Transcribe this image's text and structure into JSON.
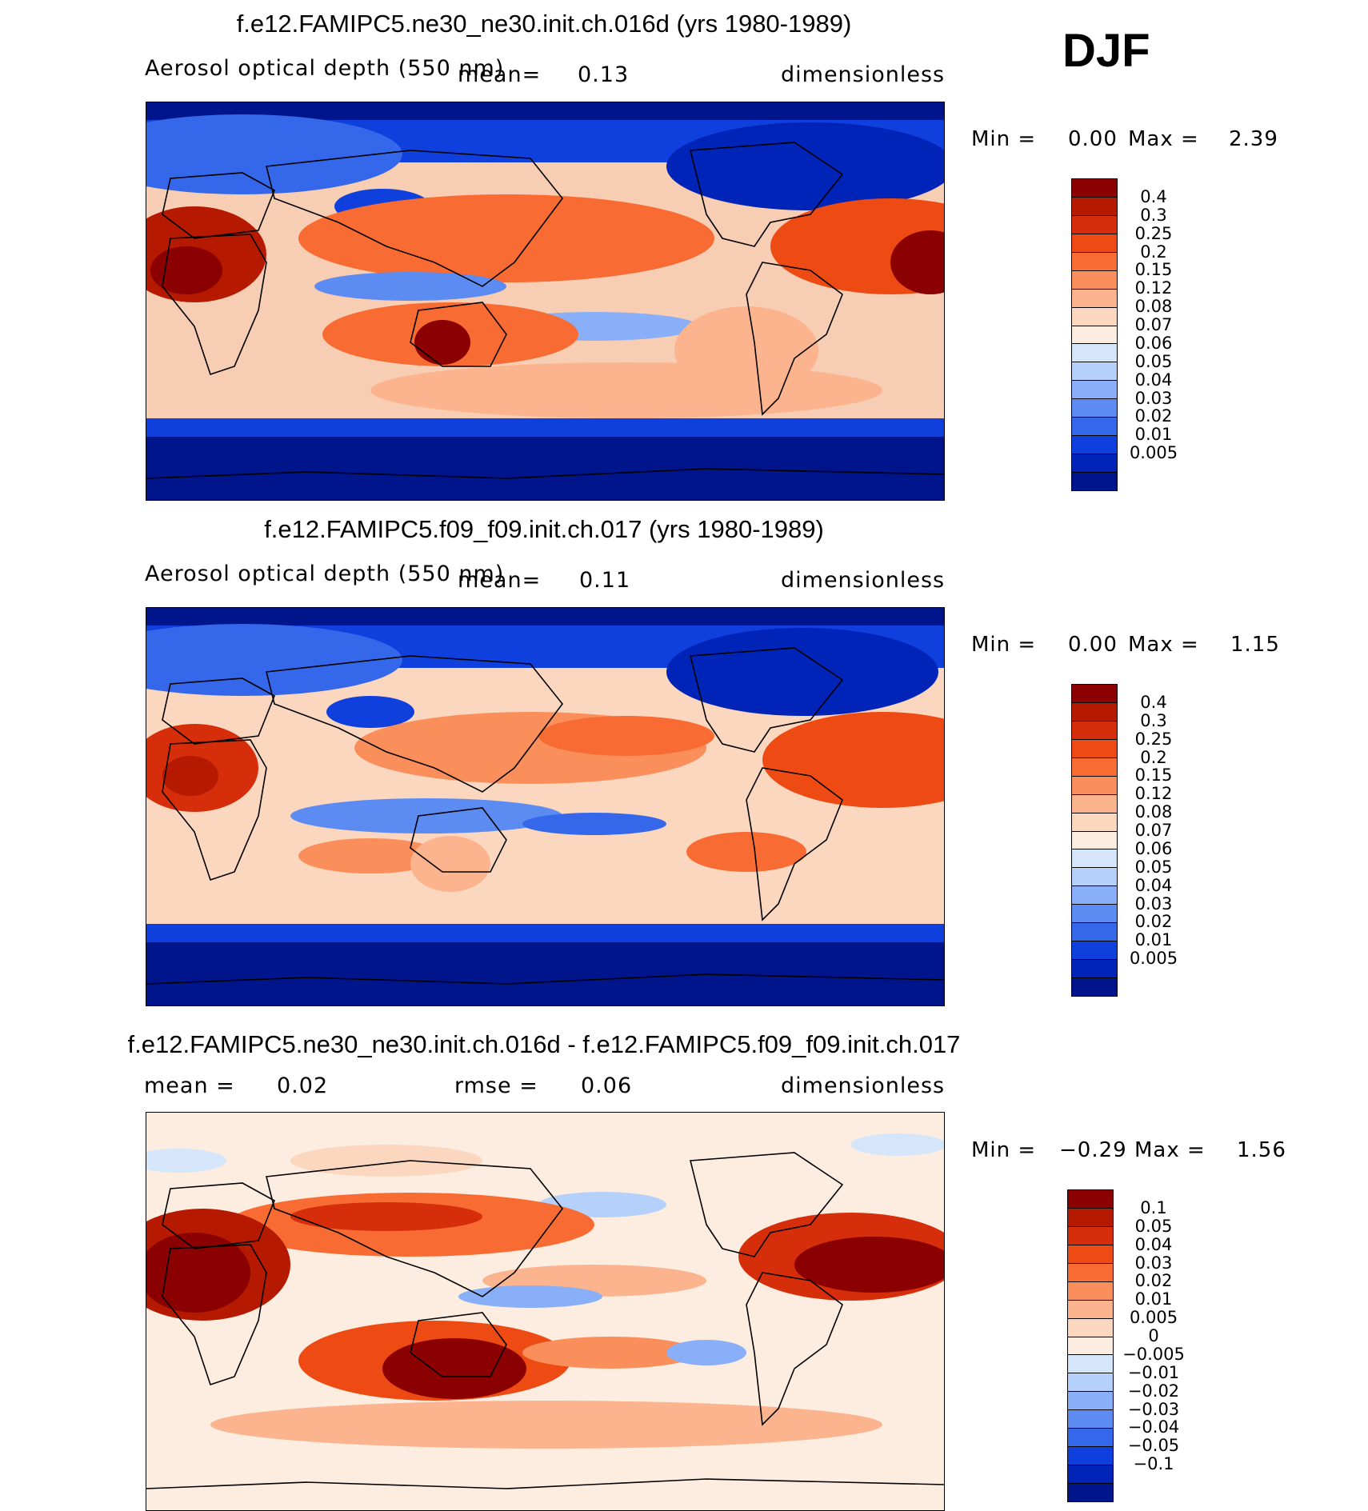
{
  "season": "DJF",
  "panels": [
    {
      "title": "f.e12.FAMIPC5.ne30_ne30.init.ch.016d (yrs 1980-1989)",
      "variable": "Aerosol optical depth (550 nm)",
      "mean_label": "mean=",
      "mean_value": "0.13",
      "units": "dimensionless",
      "min_label": "Min =",
      "min_value": "0.00",
      "max_label": "Max =",
      "max_value": "2.39",
      "colorbar": {
        "labels": [
          "0.4",
          "0.3",
          "0.25",
          "0.2",
          "0.15",
          "0.12",
          "0.08",
          "0.07",
          "0.06",
          "0.05",
          "0.04",
          "0.03",
          "0.02",
          "0.01",
          "0.005"
        ],
        "colors": [
          "#8b0000",
          "#b51a00",
          "#d62e0a",
          "#ee4a14",
          "#f86c33",
          "#fb8f5c",
          "#fcb48f",
          "#fcd7c0",
          "#fcede0",
          "#d5e6fb",
          "#b5d1fb",
          "#88aff8",
          "#5c8cf2",
          "#3567ea",
          "#0f3fdc",
          "#0023b8",
          "#00148c"
        ]
      }
    },
    {
      "title": "f.e12.FAMIPC5.f09_f09.init.ch.017 (yrs 1980-1989)",
      "variable": "Aerosol optical depth (550 nm)",
      "mean_label": "mean=",
      "mean_value": "0.11",
      "units": "dimensionless",
      "min_label": "Min =",
      "min_value": "0.00",
      "max_label": "Max =",
      "max_value": "1.15",
      "colorbar": {
        "labels": [
          "0.4",
          "0.3",
          "0.25",
          "0.2",
          "0.15",
          "0.12",
          "0.08",
          "0.07",
          "0.06",
          "0.05",
          "0.04",
          "0.03",
          "0.02",
          "0.01",
          "0.005"
        ],
        "colors": [
          "#8b0000",
          "#b51a00",
          "#d62e0a",
          "#ee4a14",
          "#f86c33",
          "#fb8f5c",
          "#fcb48f",
          "#fcd7c0",
          "#fcede0",
          "#d5e6fb",
          "#b5d1fb",
          "#88aff8",
          "#5c8cf2",
          "#3567ea",
          "#0f3fdc",
          "#0023b8",
          "#00148c"
        ]
      }
    },
    {
      "title": "f.e12.FAMIPC5.ne30_ne30.init.ch.016d - f.e12.FAMIPC5.f09_f09.init.ch.017",
      "mean_label": "mean =",
      "mean_value": "0.02",
      "rmse_label": "rmse =",
      "rmse_value": "0.06",
      "units": "dimensionless",
      "min_label": "Min =",
      "min_value": "−0.29",
      "max_label": "Max =",
      "max_value": "1.56",
      "colorbar": {
        "labels": [
          "0.1",
          "0.05",
          "0.04",
          "0.03",
          "0.02",
          "0.01",
          "0.005",
          "0",
          "−0.005",
          "−0.01",
          "−0.02",
          "−0.03",
          "−0.04",
          "−0.05",
          "−0.1"
        ],
        "colors": [
          "#8b0000",
          "#b51a00",
          "#d62e0a",
          "#ee4a14",
          "#f86c33",
          "#fb8f5c",
          "#fcb48f",
          "#fcd7c0",
          "#fcede0",
          "#d5e6fb",
          "#b5d1fb",
          "#88aff8",
          "#5c8cf2",
          "#3567ea",
          "#0f3fdc",
          "#0023b8",
          "#00148c"
        ]
      }
    }
  ]
}
